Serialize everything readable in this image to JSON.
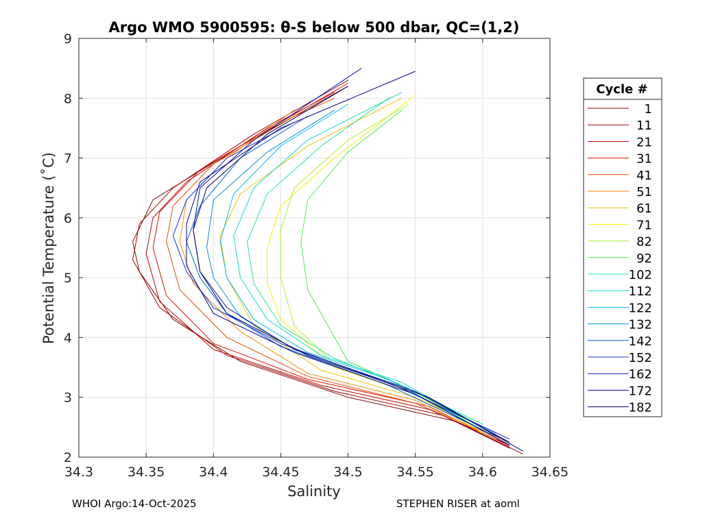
{
  "chart_data": {
    "type": "line",
    "title": "Argo WMO 5900595: θ-S below 500 dbar,  QC=(1,2)",
    "xlabel": "Salinity",
    "ylabel": "Potential Temperature (˚C)",
    "xlim": [
      34.3,
      34.65
    ],
    "ylim": [
      2,
      9
    ],
    "xticks": [
      34.3,
      34.35,
      34.4,
      34.45,
      34.5,
      34.55,
      34.6,
      34.65
    ],
    "xtick_labels": [
      "34.3",
      "34.35",
      "34.4",
      "34.45",
      "34.5",
      "34.55",
      "34.6",
      "34.65"
    ],
    "yticks": [
      2,
      3,
      4,
      5,
      6,
      7,
      8,
      9
    ],
    "ytick_labels": [
      "2",
      "3",
      "4",
      "5",
      "6",
      "7",
      "8",
      "9"
    ],
    "grid": true,
    "legend": {
      "title": "Cycle #",
      "placement": "outside-right",
      "entries": [
        {
          "label": "1",
          "color": "#800000"
        },
        {
          "label": "11",
          "color": "#9e0000"
        },
        {
          "label": "21",
          "color": "#c00000"
        },
        {
          "label": "31",
          "color": "#e01000"
        },
        {
          "label": "41",
          "color": "#e64a00"
        },
        {
          "label": "51",
          "color": "#f08a00"
        },
        {
          "label": "61",
          "color": "#e8c400"
        },
        {
          "label": "71",
          "color": "#f0f000"
        },
        {
          "label": "82",
          "color": "#a8ee30"
        },
        {
          "label": "92",
          "color": "#50e850"
        },
        {
          "label": "102",
          "color": "#20e890"
        },
        {
          "label": "112",
          "color": "#10d8d0"
        },
        {
          "label": "122",
          "color": "#00b8f0"
        },
        {
          "label": "132",
          "color": "#0090c8"
        },
        {
          "label": "142",
          "color": "#0060e0"
        },
        {
          "label": "152",
          "color": "#1030d0"
        },
        {
          "label": "162",
          "color": "#0010b0"
        },
        {
          "label": "172",
          "color": "#000090"
        },
        {
          "label": "182",
          "color": "#000060"
        }
      ]
    },
    "series": [
      {
        "name": "1",
        "color": "#800000",
        "points": [
          [
            34.63,
            2.05
          ],
          [
            34.58,
            2.6
          ],
          [
            34.5,
            3.0
          ],
          [
            34.42,
            3.6
          ],
          [
            34.37,
            4.3
          ],
          [
            34.345,
            5.1
          ],
          [
            34.34,
            5.6
          ],
          [
            34.355,
            6.3
          ],
          [
            34.42,
            7.2
          ],
          [
            34.5,
            8.2
          ]
        ]
      },
      {
        "name": "11",
        "color": "#9e0000",
        "points": [
          [
            34.62,
            2.15
          ],
          [
            34.57,
            2.7
          ],
          [
            34.49,
            3.1
          ],
          [
            34.41,
            3.7
          ],
          [
            34.36,
            4.5
          ],
          [
            34.34,
            5.3
          ],
          [
            34.345,
            5.9
          ],
          [
            34.37,
            6.5
          ],
          [
            34.43,
            7.4
          ],
          [
            34.5,
            8.3
          ]
        ]
      },
      {
        "name": "21",
        "color": "#c00000",
        "points": [
          [
            34.62,
            2.2
          ],
          [
            34.56,
            2.8
          ],
          [
            34.48,
            3.2
          ],
          [
            34.4,
            3.8
          ],
          [
            34.36,
            4.6
          ],
          [
            34.35,
            5.4
          ],
          [
            34.355,
            6.0
          ],
          [
            34.38,
            6.6
          ],
          [
            34.44,
            7.5
          ],
          [
            34.49,
            8.1
          ]
        ]
      },
      {
        "name": "31",
        "color": "#e01000",
        "points": [
          [
            34.62,
            2.18
          ],
          [
            34.56,
            2.85
          ],
          [
            34.47,
            3.3
          ],
          [
            34.4,
            3.9
          ],
          [
            34.365,
            4.7
          ],
          [
            34.355,
            5.5
          ],
          [
            34.36,
            6.1
          ],
          [
            34.39,
            6.8
          ],
          [
            34.45,
            7.6
          ],
          [
            34.5,
            8.25
          ]
        ]
      },
      {
        "name": "41",
        "color": "#e64a00",
        "points": [
          [
            34.62,
            2.25
          ],
          [
            34.55,
            2.9
          ],
          [
            34.47,
            3.35
          ],
          [
            34.41,
            4.0
          ],
          [
            34.375,
            4.8
          ],
          [
            34.365,
            5.6
          ],
          [
            34.37,
            6.2
          ],
          [
            34.4,
            6.9
          ],
          [
            34.46,
            7.7
          ],
          [
            34.49,
            8.0
          ]
        ]
      },
      {
        "name": "51",
        "color": "#f08a00",
        "points": [
          [
            34.61,
            2.3
          ],
          [
            34.55,
            2.95
          ],
          [
            34.47,
            3.4
          ],
          [
            34.42,
            4.1
          ],
          [
            34.385,
            4.9
          ],
          [
            34.375,
            5.6
          ],
          [
            34.38,
            6.3
          ],
          [
            34.41,
            7.0
          ],
          [
            34.46,
            7.8
          ]
        ]
      },
      {
        "name": "61",
        "color": "#e8c400",
        "points": [
          [
            34.61,
            2.35
          ],
          [
            34.55,
            3.0
          ],
          [
            34.48,
            3.45
          ],
          [
            34.43,
            4.2
          ],
          [
            34.41,
            5.0
          ],
          [
            34.405,
            5.7
          ],
          [
            34.42,
            6.4
          ],
          [
            34.47,
            7.2
          ],
          [
            34.54,
            8.0
          ]
        ]
      },
      {
        "name": "71",
        "color": "#f0f000",
        "points": [
          [
            34.6,
            2.4
          ],
          [
            34.55,
            3.05
          ],
          [
            34.49,
            3.5
          ],
          [
            34.45,
            4.3
          ],
          [
            34.44,
            4.9
          ],
          [
            34.44,
            5.5
          ],
          [
            34.45,
            6.2
          ],
          [
            34.49,
            7.0
          ],
          [
            34.55,
            8.05
          ]
        ]
      },
      {
        "name": "82",
        "color": "#a8ee30",
        "points": [
          [
            34.6,
            2.45
          ],
          [
            34.55,
            3.1
          ],
          [
            34.49,
            3.55
          ],
          [
            34.46,
            4.2
          ],
          [
            34.45,
            5.0
          ],
          [
            34.45,
            5.8
          ],
          [
            34.46,
            6.5
          ],
          [
            34.5,
            7.3
          ],
          [
            34.545,
            7.9
          ]
        ]
      },
      {
        "name": "92",
        "color": "#50e850",
        "points": [
          [
            34.6,
            2.5
          ],
          [
            34.54,
            3.2
          ],
          [
            34.5,
            3.6
          ],
          [
            34.485,
            4.2
          ],
          [
            34.47,
            4.8
          ],
          [
            34.465,
            5.6
          ],
          [
            34.47,
            6.3
          ],
          [
            34.5,
            7.1
          ],
          [
            34.54,
            7.8
          ]
        ]
      },
      {
        "name": "102",
        "color": "#20e890",
        "points": [
          [
            34.6,
            2.55
          ],
          [
            34.54,
            3.2
          ],
          [
            34.49,
            3.65
          ],
          [
            34.45,
            4.2
          ],
          [
            34.43,
            4.9
          ],
          [
            34.425,
            5.6
          ],
          [
            34.44,
            6.4
          ],
          [
            34.48,
            7.2
          ],
          [
            34.53,
            8.0
          ]
        ]
      },
      {
        "name": "112",
        "color": "#10d8d0",
        "points": [
          [
            34.6,
            2.5
          ],
          [
            34.54,
            3.25
          ],
          [
            34.48,
            3.7
          ],
          [
            34.44,
            4.3
          ],
          [
            34.42,
            5.0
          ],
          [
            34.415,
            5.7
          ],
          [
            34.43,
            6.5
          ],
          [
            34.47,
            7.3
          ],
          [
            34.54,
            8.1
          ]
        ]
      },
      {
        "name": "122",
        "color": "#00b8f0",
        "points": [
          [
            34.6,
            2.45
          ],
          [
            34.53,
            3.3
          ],
          [
            34.47,
            3.75
          ],
          [
            34.43,
            4.3
          ],
          [
            34.41,
            5.0
          ],
          [
            34.405,
            5.6
          ],
          [
            34.415,
            6.4
          ],
          [
            34.45,
            7.2
          ],
          [
            34.5,
            7.9
          ]
        ]
      },
      {
        "name": "132",
        "color": "#0090c8",
        "points": [
          [
            34.61,
            2.4
          ],
          [
            34.53,
            3.25
          ],
          [
            34.46,
            3.8
          ],
          [
            34.42,
            4.35
          ],
          [
            34.4,
            5.0
          ],
          [
            34.395,
            5.5
          ],
          [
            34.4,
            6.3
          ],
          [
            34.44,
            7.1
          ],
          [
            34.49,
            7.8
          ]
        ]
      },
      {
        "name": "142",
        "color": "#0060e0",
        "points": [
          [
            34.61,
            2.35
          ],
          [
            34.53,
            3.2
          ],
          [
            34.45,
            3.85
          ],
          [
            34.41,
            4.4
          ],
          [
            34.39,
            5.0
          ],
          [
            34.38,
            5.6
          ],
          [
            34.39,
            6.2
          ],
          [
            34.42,
            7.0
          ],
          [
            34.47,
            7.7
          ]
        ]
      },
      {
        "name": "152",
        "color": "#1030d0",
        "points": [
          [
            34.62,
            2.3
          ],
          [
            34.54,
            3.15
          ],
          [
            34.45,
            3.9
          ],
          [
            34.4,
            4.5
          ],
          [
            34.38,
            5.1
          ],
          [
            34.37,
            5.7
          ],
          [
            34.38,
            6.3
          ],
          [
            34.41,
            7.0
          ],
          [
            34.46,
            7.6
          ]
        ]
      },
      {
        "name": "162",
        "color": "#0010b0",
        "points": [
          [
            34.62,
            2.25
          ],
          [
            34.55,
            3.1
          ],
          [
            34.46,
            3.8
          ],
          [
            34.41,
            4.5
          ],
          [
            34.39,
            5.1
          ],
          [
            34.385,
            5.8
          ],
          [
            34.39,
            6.5
          ],
          [
            34.43,
            7.3
          ],
          [
            34.51,
            8.5
          ]
        ]
      },
      {
        "name": "172",
        "color": "#000090",
        "points": [
          [
            34.62,
            2.2
          ],
          [
            34.55,
            3.05
          ],
          [
            34.46,
            3.75
          ],
          [
            34.4,
            4.4
          ],
          [
            34.38,
            5.2
          ],
          [
            34.38,
            5.9
          ],
          [
            34.39,
            6.6
          ],
          [
            34.45,
            7.5
          ],
          [
            34.55,
            8.45
          ]
        ]
      },
      {
        "name": "182",
        "color": "#000060",
        "points": [
          [
            34.63,
            2.1
          ],
          [
            34.56,
            3.0
          ],
          [
            34.47,
            3.7
          ],
          [
            34.41,
            4.4
          ],
          [
            34.39,
            5.1
          ],
          [
            34.385,
            5.8
          ],
          [
            34.395,
            6.5
          ],
          [
            34.44,
            7.4
          ],
          [
            34.5,
            8.2
          ]
        ]
      }
    ]
  },
  "footer": {
    "left": "WHOI Argo:14-Oct-2025",
    "right": "STEPHEN RISER at aoml"
  }
}
